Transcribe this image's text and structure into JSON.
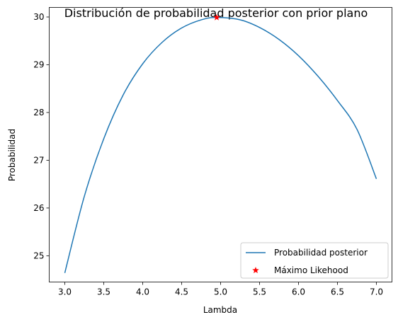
{
  "chart_data": {
    "type": "line",
    "title": "Distribución de probabilidad posterior con prior plano",
    "xlabel": "Lambda",
    "ylabel": "Probabilidad",
    "xlim": [
      2.8,
      7.2
    ],
    "ylim": [
      24.45,
      30.2
    ],
    "x_ticks": [
      3.0,
      3.5,
      4.0,
      4.5,
      5.0,
      5.5,
      6.0,
      6.5,
      7.0
    ],
    "x_tick_labels": [
      "3.0",
      "3.5",
      "4.0",
      "4.5",
      "5.0",
      "5.5",
      "6.0",
      "6.5",
      "7.0"
    ],
    "y_ticks": [
      25,
      26,
      27,
      28,
      29,
      30
    ],
    "y_tick_labels": [
      "25",
      "26",
      "27",
      "28",
      "29",
      "30"
    ],
    "grid": false,
    "legend_position": "bottom-right",
    "series": [
      {
        "name": "Probabilidad posterior",
        "kind": "line",
        "color": "#1f77b4",
        "x": [
          3.0,
          3.25,
          3.5,
          3.75,
          4.0,
          4.25,
          4.5,
          4.75,
          4.95,
          5.25,
          5.5,
          5.75,
          6.0,
          6.25,
          6.5,
          6.75,
          7.0
        ],
        "y": [
          24.64,
          26.24,
          27.45,
          28.37,
          29.02,
          29.47,
          29.77,
          29.94,
          29.99,
          29.94,
          29.78,
          29.53,
          29.19,
          28.76,
          28.25,
          27.65,
          26.61
        ]
      },
      {
        "name": "Máximo Likehood",
        "kind": "scatter",
        "marker": "star",
        "color": "#ff0000",
        "x": [
          4.95
        ],
        "y": [
          29.99
        ]
      }
    ]
  }
}
